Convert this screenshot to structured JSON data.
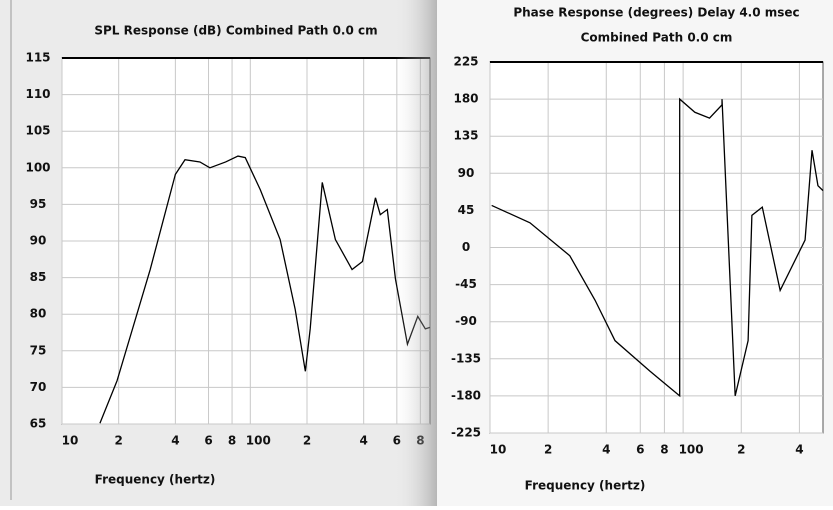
{
  "chart_data": [
    {
      "type": "line",
      "title": "SPL Response (dB)   Combined   Path 0.0 cm",
      "xlabel": "Frequency (hertz)",
      "x": [
        15.9,
        19.6,
        29.4,
        40,
        45,
        54,
        61,
        74,
        86,
        94,
        113,
        144,
        173,
        196,
        208,
        241,
        283,
        347,
        394,
        462,
        490,
        534,
        590,
        683,
        775,
        850,
        900
      ],
      "values": [
        65.1,
        70.9,
        86.1,
        99.1,
        101.1,
        100.8,
        100.0,
        100.8,
        101.6,
        101.4,
        97.0,
        90.2,
        80.7,
        72.2,
        78.0,
        98.0,
        90.2,
        86.1,
        87.2,
        95.9,
        93.6,
        94.3,
        84.8,
        75.9,
        79.7,
        78.0,
        78.2
      ],
      "color": "#000000",
      "xscale": "log",
      "grid": true,
      "xlim": [
        10,
        900
      ],
      "ylim": [
        65,
        115
      ],
      "xticks": [
        10,
        {
          "value": 20,
          "label": "2"
        },
        {
          "value": 40,
          "label": "4"
        },
        {
          "value": 60,
          "label": "6"
        },
        {
          "value": 80,
          "label": "8"
        },
        100,
        {
          "value": 200,
          "label": "2"
        },
        {
          "value": 400,
          "label": "4"
        },
        {
          "value": 600,
          "label": "6"
        },
        {
          "value": 800,
          "label": "8"
        }
      ],
      "yticks": [
        65,
        70,
        75,
        80,
        85,
        90,
        95,
        100,
        105,
        110,
        115
      ]
    },
    {
      "type": "line",
      "title": "Phase Response (degrees)   Delay 4.0 msec",
      "subtitle": "Combined   Path 0.0 cm",
      "xlabel": "Frequency (hertz)",
      "x": [
        10.2,
        16.1,
        25.9,
        35,
        44.4,
        67.3,
        96,
        96,
        115,
        137,
        159,
        159,
        186,
        217,
        227,
        257,
        318,
        428,
        465,
        499,
        530
      ],
      "values": [
        51,
        30,
        -10,
        -64,
        -113,
        -150,
        -180,
        180,
        164,
        157,
        173,
        180,
        -180,
        -113,
        39,
        49,
        -52,
        9,
        118,
        75,
        69
      ],
      "color": "#000000",
      "xscale": "log",
      "grid": true,
      "xlim": [
        10,
        530
      ],
      "ylim": [
        -225,
        225
      ],
      "xticks": [
        10,
        {
          "value": 20,
          "label": "2"
        },
        {
          "value": 40,
          "label": "4"
        },
        {
          "value": 60,
          "label": "6"
        },
        {
          "value": 80,
          "label": "8"
        },
        100,
        {
          "value": 200,
          "label": "2"
        },
        {
          "value": 400,
          "label": "4"
        }
      ],
      "yticks": [
        -225,
        -180,
        -135,
        -90,
        -45,
        0,
        45,
        90,
        135,
        180,
        225
      ]
    }
  ]
}
